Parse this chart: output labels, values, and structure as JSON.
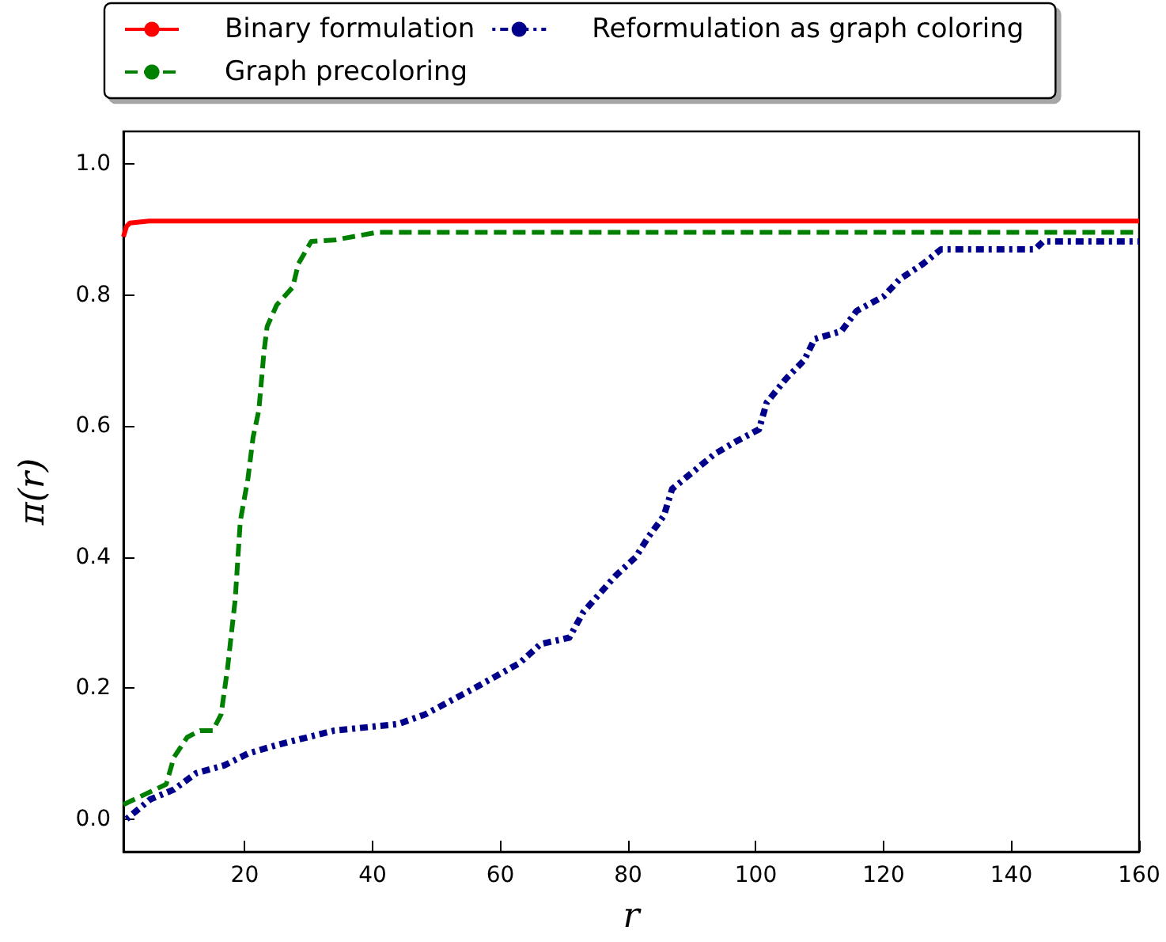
{
  "chart_data": {
    "type": "line",
    "xlabel": "r",
    "ylabel": "π(r)",
    "xlim": [
      1,
      160
    ],
    "xticks": [
      20,
      40,
      60,
      80,
      100,
      120,
      140,
      160
    ],
    "ylim": [
      -0.05,
      1.05
    ],
    "yticks": [
      {
        "value": 0,
        "label": "0.0"
      },
      {
        "value": 0.2,
        "label": "0.2"
      },
      {
        "value": 0.4,
        "label": "0.4"
      },
      {
        "value": 0.6,
        "label": "0.6"
      },
      {
        "value": 0.8,
        "label": "0.8"
      },
      {
        "value": 1,
        "label": "1.0"
      }
    ],
    "grid": false,
    "legend": "top",
    "marker": "none",
    "series": [
      {
        "name": "Binary formulation",
        "color": "#ff0000",
        "line_style": "solid",
        "x": [
          1,
          1.5,
          2,
          5,
          160
        ],
        "values": [
          0.889,
          0.905,
          0.91,
          0.913,
          0.913
        ]
      },
      {
        "name": "Graph precoloring",
        "color": "#008000",
        "line_style": "dashed",
        "x": [
          1,
          7.7,
          8.9,
          11,
          13,
          15,
          16.3,
          17.3,
          18.5,
          19.3,
          20.5,
          21.3,
          22.2,
          23,
          23.5,
          25,
          27.5,
          28.4,
          30.4,
          34,
          40.8,
          160
        ],
        "values": [
          0.022,
          0.053,
          0.094,
          0.125,
          0.135,
          0.135,
          0.16,
          0.23,
          0.335,
          0.455,
          0.52,
          0.583,
          0.624,
          0.713,
          0.752,
          0.785,
          0.812,
          0.848,
          0.882,
          0.884,
          0.896,
          0.896
        ]
      },
      {
        "name": "Reformulation as graph coloring",
        "color": "#00008b",
        "line_style": "dotted",
        "x": [
          1.5,
          5.2,
          8.9,
          12.4,
          16.8,
          20.5,
          25,
          34,
          44,
          48.3,
          55.6,
          63,
          66.3,
          70.8,
          73,
          78,
          81.2,
          83.2,
          85.6,
          86.9,
          93.5,
          96.8,
          100.5,
          101.7,
          104.7,
          107.6,
          109.2,
          113.4,
          115.8,
          120,
          122.5,
          126.2,
          129,
          143.7,
          145,
          160
        ],
        "values": [
          0,
          0.03,
          0.045,
          0.07,
          0.082,
          0.1,
          0.113,
          0.135,
          0.145,
          0.16,
          0.198,
          0.238,
          0.267,
          0.277,
          0.316,
          0.371,
          0.4,
          0.431,
          0.463,
          0.504,
          0.557,
          0.576,
          0.595,
          0.636,
          0.672,
          0.701,
          0.733,
          0.745,
          0.776,
          0.798,
          0.824,
          0.848,
          0.87,
          0.87,
          0.882,
          0.882
        ]
      }
    ]
  }
}
